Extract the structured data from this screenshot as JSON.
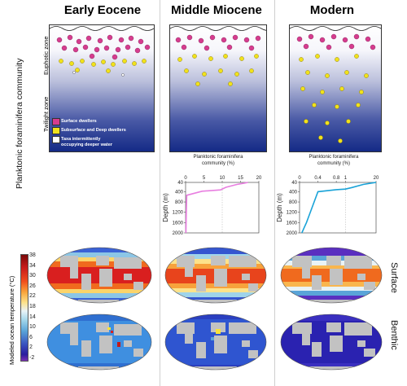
{
  "columns": [
    {
      "title": "Early Eocene"
    },
    {
      "title": "Middle Miocene"
    },
    {
      "title": "Modern"
    }
  ],
  "left_labels": {
    "community": "Planktonic foraminifera community",
    "euphotic": "Euphotic zone",
    "twilight": "Twilight zone"
  },
  "legend": {
    "surface": "Surface dwellers",
    "subsurface": "Subsurface and Deep dwellers",
    "taxa_line1": "Taxa intermittently",
    "taxa_line2": "occupying deeper water"
  },
  "right_labels": {
    "surface": "Surface",
    "benthic": "Benthic"
  },
  "colorbar": {
    "label": "Modeled ocean temperature (°C)",
    "ticks": [
      "38",
      "34",
      "30",
      "26",
      "22",
      "18",
      "14",
      "10",
      "6",
      "2",
      "-2"
    ]
  },
  "colors": {
    "surface_dweller": "#d63c8e",
    "subsurface_dweller": "#f1e21c",
    "mid_miocene_profile": "#e87ee0",
    "modern_profile": "#1aa3d8"
  },
  "chart_data": [
    {
      "type": "line",
      "title": "Planktonic foraminifera community (%)",
      "xlabel": "Planktonic foraminifera community (%)",
      "ylabel": "Depth (m)",
      "xticks": [
        "0",
        "5",
        "10",
        "15",
        "20"
      ],
      "yticks": [
        "40",
        "400",
        "800",
        "1200",
        "1600",
        "2000"
      ],
      "xlim": [
        0,
        20
      ],
      "ylim": [
        40,
        2000
      ],
      "series": [
        {
          "x": [
            0.1,
            0.2,
            0.3,
            4.5,
            9.5,
            11,
            14,
            16,
            17
          ],
          "y": [
            2000,
            1200,
            540,
            380,
            330,
            230,
            120,
            70,
            40
          ]
        }
      ]
    },
    {
      "type": "line",
      "title": "Planktonic foraminifera community (%)",
      "xlabel": "Planktonic foraminifera community (%)",
      "ylabel": "Depth (m)",
      "xticks": [
        "0",
        "0.4",
        "0.8",
        "1",
        "20"
      ],
      "yticks": [
        "40",
        "400",
        "800",
        "1200",
        "1600",
        "2000"
      ],
      "series": [
        {
          "x": [
            0.05,
            0.1,
            0.15,
            0.4,
            0.8,
            1,
            5,
            12,
            18,
            20
          ],
          "y": [
            2000,
            1800,
            1600,
            400,
            320,
            300,
            240,
            120,
            60,
            40
          ]
        }
      ]
    }
  ]
}
